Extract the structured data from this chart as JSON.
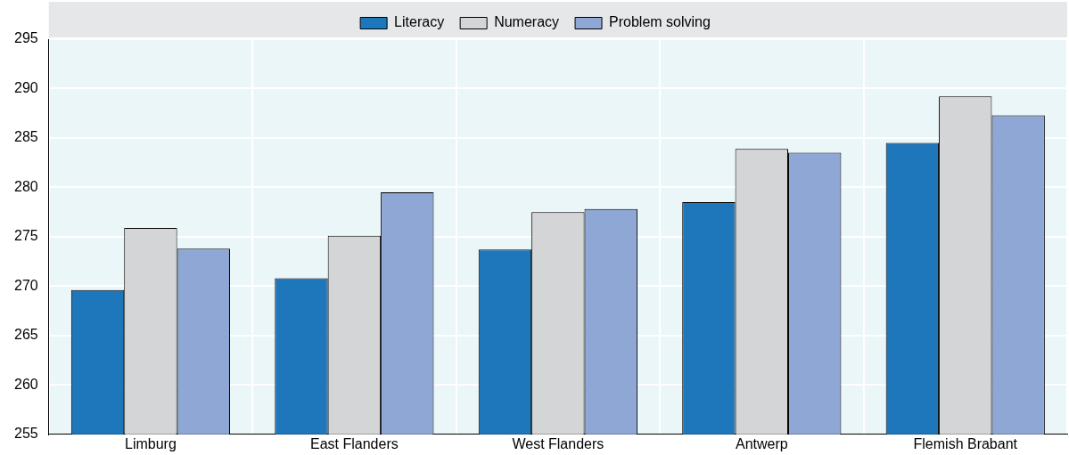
{
  "chart_data": {
    "type": "bar",
    "categories": [
      "Limburg",
      "East Flanders",
      "West Flanders",
      "Antwerp",
      "Flemish Brabant"
    ],
    "series": [
      {
        "name": "Literacy",
        "color": "#1f77bb",
        "values": [
          269.6,
          270.8,
          273.7,
          278.5,
          284.5
        ]
      },
      {
        "name": "Numeracy",
        "color": "#d4d5d7",
        "values": [
          275.9,
          275.1,
          277.5,
          283.9,
          289.2
        ]
      },
      {
        "name": "Problem solving",
        "color": "#8ea7d4",
        "values": [
          273.8,
          279.5,
          277.8,
          283.5,
          287.3
        ]
      }
    ],
    "ylim": [
      255,
      295
    ],
    "yticks": [
      255,
      260,
      265,
      270,
      275,
      280,
      285,
      290,
      295
    ],
    "grid": true,
    "legend": "top"
  }
}
